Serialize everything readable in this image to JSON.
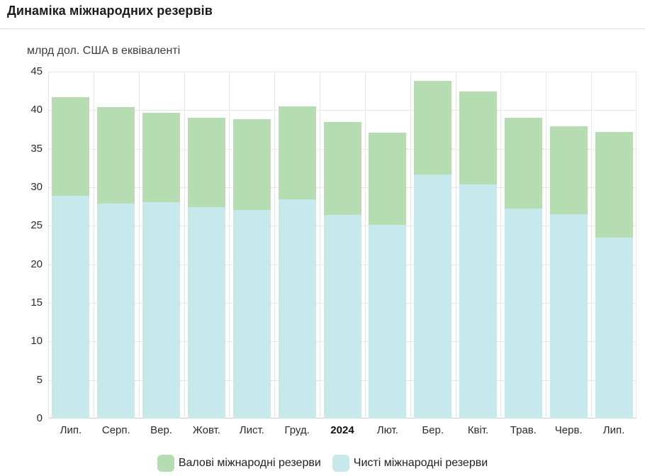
{
  "page": {
    "title": "Динаміка міжнародних резервів"
  },
  "chart_data": {
    "type": "bar",
    "subtype": "overlay-columns",
    "title": "Динаміка міжнародних резервів",
    "unit_label": "млрд дол. США в еквіваленті",
    "categories": [
      "Лип.",
      "Серп.",
      "Вер.",
      "Жовт.",
      "Лист.",
      "Груд.",
      "2024",
      "Лют.",
      "Бер.",
      "Квіт.",
      "Трав.",
      "Черв.",
      "Лип."
    ],
    "bold_category": "2024",
    "series": [
      {
        "name": "Валові міжнародні резерви",
        "color": "#b6dcb1",
        "values": [
          41.7,
          40.4,
          39.7,
          39.0,
          38.8,
          40.5,
          38.5,
          37.1,
          43.8,
          42.4,
          39.0,
          37.9,
          37.2
        ]
      },
      {
        "name": "Чисті міжнародні резерви",
        "color": "#c8e9eb",
        "values": [
          28.9,
          27.9,
          28.1,
          27.4,
          27.1,
          28.4,
          26.4,
          25.1,
          31.7,
          30.4,
          27.2,
          26.5,
          23.5
        ]
      }
    ],
    "ylim": [
      0,
      45
    ],
    "ytick_step": 5,
    "grid": true,
    "legend_position": "bottom"
  },
  "colors": {
    "grid_line": "#e5e5e5",
    "axis_line": "#c9c9c9",
    "title_text": "#1b1b1b",
    "tick_text": "#2b2b2b",
    "background": "#ffffff"
  }
}
